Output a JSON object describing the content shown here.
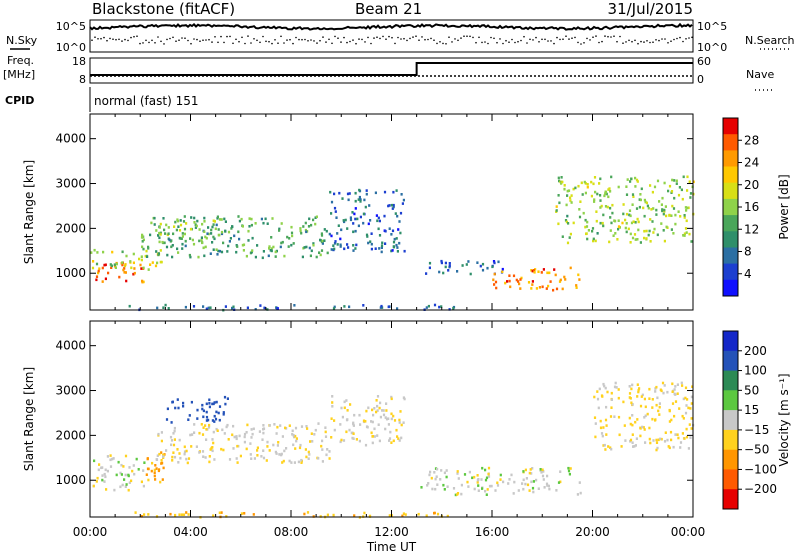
{
  "header": {
    "station": "Blackstone (fitACF)",
    "beam": "Beam 21",
    "date": "31/Jul/2015"
  },
  "noise_panel": {
    "left_label": "N.Sky",
    "right_label": "N.Search",
    "left_ticks": [
      "10^5",
      "10^0"
    ],
    "right_ticks": [
      "10^5",
      "10^0"
    ]
  },
  "freq_panel": {
    "left_label": "Freq.",
    "left_unit": "[MHz]",
    "right_label": "Nave",
    "left_ticks": [
      "18",
      "8"
    ],
    "right_ticks": [
      "60",
      "0"
    ],
    "step_time_hours": 13.0
  },
  "cpid": {
    "label": "CPID",
    "value": "normal (fast) 151"
  },
  "axes": {
    "x_ticks": [
      "00:00",
      "04:00",
      "08:00",
      "12:00",
      "16:00",
      "20:00",
      "00:00"
    ],
    "x_label": "Time UT",
    "y_label": "Slant Range [km]",
    "y_ticks": [
      "4000",
      "3000",
      "2000",
      "1000"
    ]
  },
  "power_scale": {
    "title": "Power [dB]",
    "ticks": [
      "28",
      "24",
      "20",
      "16",
      "12",
      "8",
      "4"
    ],
    "colors": [
      "#e60000",
      "#ff5a00",
      "#ff9a00",
      "#ffc800",
      "#d8df16",
      "#8fd24a",
      "#4aa65a",
      "#2f8f6a",
      "#2b6fa3",
      "#1c3fd0",
      "#1010ff"
    ]
  },
  "velocity_scale": {
    "title": "Velocity [m s⁻¹]",
    "ticks": [
      "200",
      "100",
      "50",
      "15",
      "−15",
      "−50",
      "−100",
      "−200"
    ],
    "colors": [
      "#1427c8",
      "#2452b8",
      "#2c8a55",
      "#5cc840",
      "#c8c8c8",
      "#ffd21e",
      "#ff9600",
      "#ff5a00",
      "#e60000"
    ]
  },
  "chart_data": [
    {
      "type": "heatmap",
      "title": "Power [dB]",
      "xlabel": "Time UT",
      "ylabel": "Slant Range [km]",
      "xlim_hours": [
        0,
        24
      ],
      "ylim_km": [
        180,
        4550
      ],
      "regions": [
        {
          "t": [
            0.0,
            2.2
          ],
          "range": [
            800,
            1300
          ],
          "power": 28
        },
        {
          "t": [
            0.0,
            3.0
          ],
          "range": [
            1100,
            1550
          ],
          "power": 18
        },
        {
          "t": [
            2.0,
            9.5
          ],
          "range": [
            1350,
            2300
          ],
          "power": 12
        },
        {
          "t": [
            2.5,
            5.0
          ],
          "range": [
            1700,
            2200
          ],
          "power": 16
        },
        {
          "t": [
            9.5,
            12.5
          ],
          "range": [
            1500,
            2900
          ],
          "power": 6
        },
        {
          "t": [
            13.0,
            16.5
          ],
          "range": [
            1000,
            1300
          ],
          "power": 6
        },
        {
          "t": [
            16.0,
            19.5
          ],
          "range": [
            650,
            1150
          ],
          "power": 26
        },
        {
          "t": [
            18.5,
            24.0
          ],
          "range": [
            1700,
            3200
          ],
          "power": 16
        },
        {
          "t": [
            1.5,
            14.5
          ],
          "range": [
            200,
            320
          ],
          "power": 6
        }
      ]
    },
    {
      "type": "heatmap",
      "title": "Velocity [m s⁻¹]",
      "xlabel": "Time UT",
      "ylabel": "Slant Range [km]",
      "xlim_hours": [
        0,
        24
      ],
      "ylim_km": [
        180,
        4550
      ],
      "regions": [
        {
          "t": [
            0.0,
            2.2
          ],
          "range": [
            800,
            1600
          ],
          "velocity": 0
        },
        {
          "t": [
            2.2,
            3.0
          ],
          "range": [
            900,
            1700
          ],
          "velocity": -60
        },
        {
          "t": [
            2.5,
            9.5
          ],
          "range": [
            1400,
            2300
          ],
          "velocity": -10
        },
        {
          "t": [
            3.0,
            5.5
          ],
          "range": [
            2300,
            2900
          ],
          "velocity": 150
        },
        {
          "t": [
            9.5,
            12.5
          ],
          "range": [
            1800,
            2900
          ],
          "velocity": -10
        },
        {
          "t": [
            13.0,
            19.5
          ],
          "range": [
            700,
            1300
          ],
          "velocity": 0
        },
        {
          "t": [
            20.0,
            24.0
          ],
          "range": [
            1700,
            3200
          ],
          "velocity": -20
        },
        {
          "t": [
            1.5,
            14.5
          ],
          "range": [
            200,
            320
          ],
          "velocity": -40
        }
      ]
    }
  ]
}
